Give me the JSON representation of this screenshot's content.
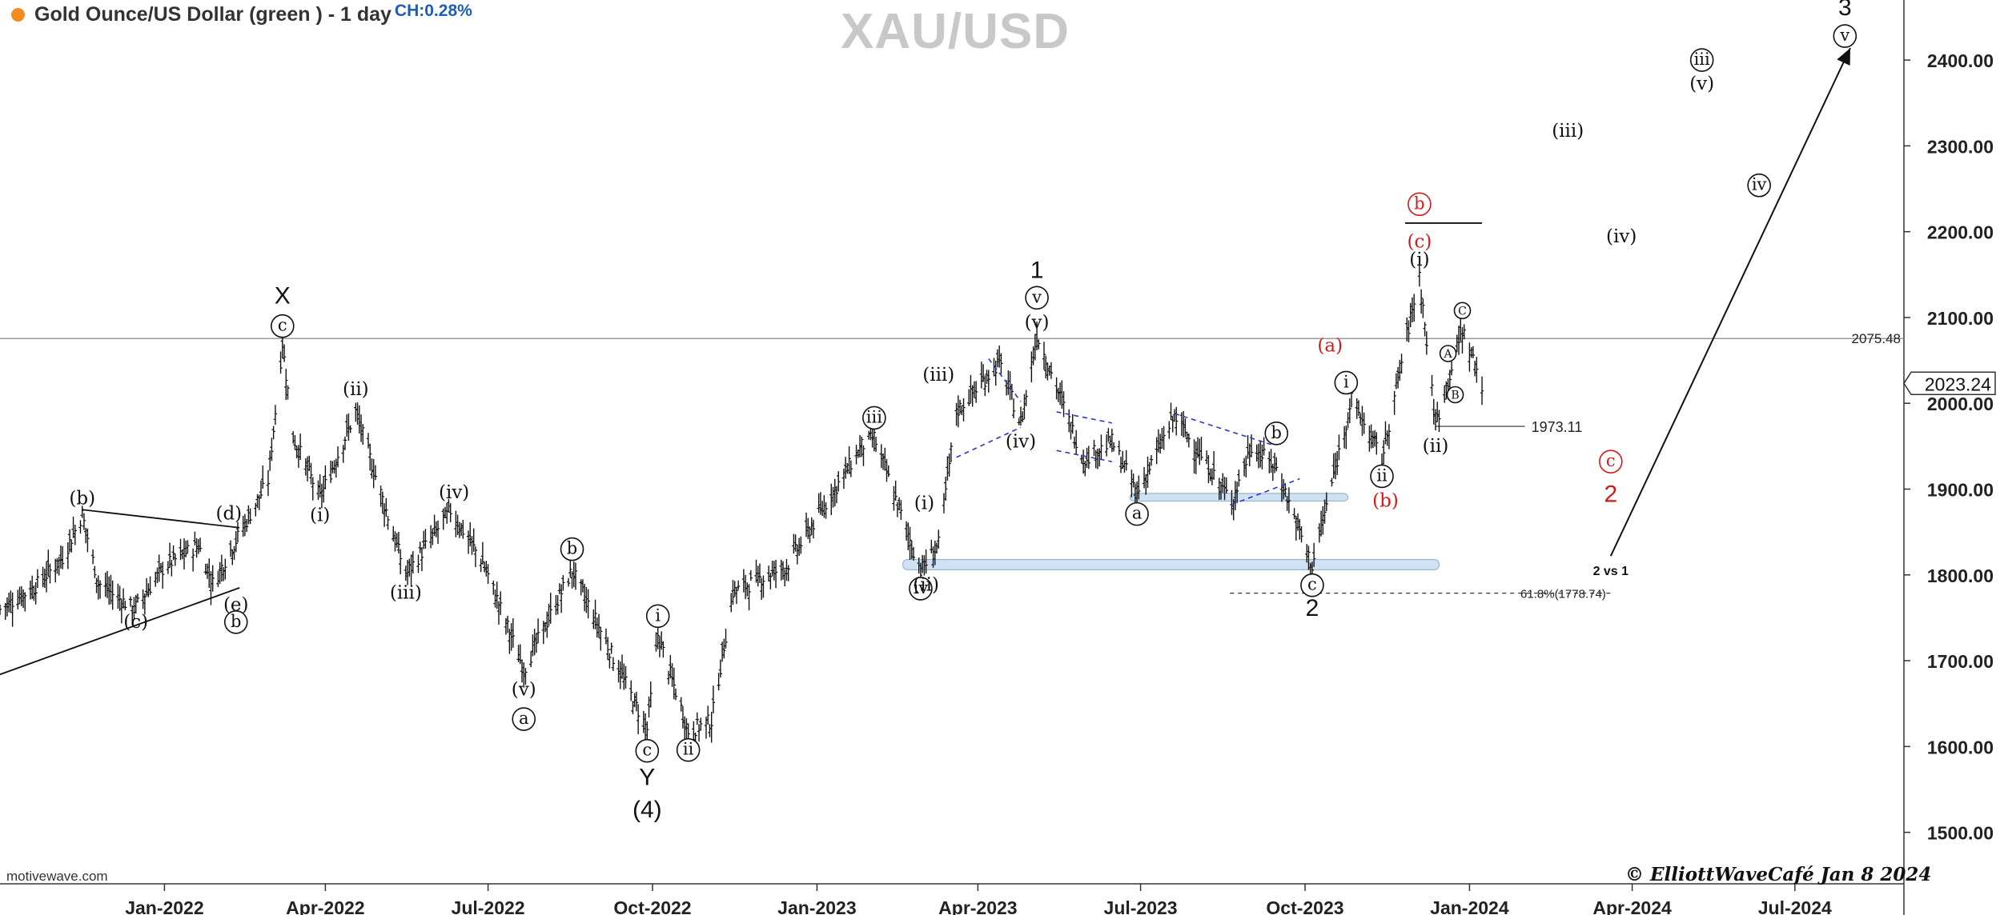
{
  "header": {
    "series_name": "Gold Ounce/US Dollar (green ) - 1 day",
    "change": "CH:0.28%",
    "symbol_watermark": "XAU/USD"
  },
  "footer": {
    "platform": "motivewave.com",
    "signature": "© ElliottWaveCafé Jan 8 2024"
  },
  "colors": {
    "up_marker": "#f28c1e",
    "change_text": "#1a5fb4",
    "bars": "#111111",
    "red_labels": "#d21a1a",
    "zones": "#cfe2f3",
    "triangle_dash": "#2a36c9"
  },
  "chart_data": {
    "type": "ohlc",
    "title": "XAU/USD",
    "ylabel": "",
    "ylim": [
      1440,
      2470
    ],
    "xlim": [
      "2021-10-01",
      "2024-08-31"
    ],
    "yticks": [
      1500,
      1600,
      1700,
      1800,
      1900,
      2000,
      2100,
      2200,
      2300,
      2400
    ],
    "ytick_labels": [
      "1500.00",
      "1600.00",
      "1700.00",
      "1800.00",
      "1900.00",
      "2000.00",
      "2100.00",
      "2200.00",
      "2300.00",
      "2400.00"
    ],
    "xticks": [
      "2022-01-01",
      "2022-04-01",
      "2022-07-01",
      "2022-10-01",
      "2023-01-01",
      "2023-04-01",
      "2023-07-01",
      "2023-10-01",
      "2024-01-01",
      "2024-04-01",
      "2024-07-01"
    ],
    "xtick_labels": [
      "Jan-2022",
      "Apr-2022",
      "Jul-2022",
      "Oct-2022",
      "Jan-2023",
      "Apr-2023",
      "Jul-2023",
      "Oct-2023",
      "Jan-2024",
      "Apr-2024",
      "Jul-2024"
    ],
    "last_price": "2023.24",
    "price_path": [
      [
        "2021-10-01",
        1760
      ],
      [
        "2021-10-20",
        1785
      ],
      [
        "2021-11-05",
        1820
      ],
      [
        "2021-11-16",
        1870
      ],
      [
        "2021-11-25",
        1790
      ],
      [
        "2021-12-15",
        1760
      ],
      [
        "2022-01-01",
        1810
      ],
      [
        "2022-01-20",
        1835
      ],
      [
        "2022-01-28",
        1790
      ],
      [
        "2022-02-10",
        1840
      ],
      [
        "2022-02-28",
        1910
      ],
      [
        "2022-03-08",
        2070
      ],
      [
        "2022-03-14",
        1960
      ],
      [
        "2022-03-29",
        1890
      ],
      [
        "2022-04-18",
        1990
      ],
      [
        "2022-05-16",
        1800
      ],
      [
        "2022-06-10",
        1875
      ],
      [
        "2022-06-28",
        1815
      ],
      [
        "2022-07-21",
        1690
      ],
      [
        "2022-08-17",
        1805
      ],
      [
        "2022-09-28",
        1620
      ],
      [
        "2022-10-04",
        1730
      ],
      [
        "2022-10-21",
        1618
      ],
      [
        "2022-11-03",
        1630
      ],
      [
        "2022-11-15",
        1780
      ],
      [
        "2022-12-15",
        1810
      ],
      [
        "2023-01-26",
        1950
      ],
      [
        "2023-02-02",
        1960
      ],
      [
        "2023-02-28",
        1805
      ],
      [
        "2023-03-10",
        1835
      ],
      [
        "2023-03-20",
        1990
      ],
      [
        "2023-04-13",
        2048
      ],
      [
        "2023-04-25",
        1975
      ],
      [
        "2023-05-04",
        2080
      ],
      [
        "2023-05-30",
        1935
      ],
      [
        "2023-06-15",
        1955
      ],
      [
        "2023-06-29",
        1895
      ],
      [
        "2023-07-20",
        1985
      ],
      [
        "2023-08-21",
        1885
      ],
      [
        "2023-09-01",
        1950
      ],
      [
        "2023-09-15",
        1925
      ],
      [
        "2023-10-05",
        1810
      ],
      [
        "2023-10-27",
        2005
      ],
      [
        "2023-11-13",
        1935
      ],
      [
        "2023-12-04",
        2150
      ],
      [
        "2023-12-13",
        1975
      ],
      [
        "2023-12-28",
        2085
      ],
      [
        "2024-01-08",
        2023
      ]
    ],
    "reference_lines": [
      {
        "label": "2075.48",
        "value": 2075.48,
        "style": "solid-full"
      },
      {
        "label": "1973.11",
        "value": 1973.11,
        "style": "solid-short"
      },
      {
        "label": "61.8%(1778.74)",
        "value": 1778.74,
        "style": "dashed"
      }
    ],
    "annotations_wave_labels": [
      {
        "text": "X",
        "x": "2022-03-08",
        "y": 2126,
        "style": "plain-large"
      },
      {
        "text": "c",
        "x": "2022-03-08",
        "y": 2090,
        "style": "circle"
      },
      {
        "text": "(b)",
        "x": "2021-11-16",
        "y": 1890
      },
      {
        "text": "(c)",
        "x": "2021-12-16",
        "y": 1746
      },
      {
        "text": "(d)",
        "x": "2022-02-06",
        "y": 1872
      },
      {
        "text": "(e)",
        "x": "2022-02-10",
        "y": 1766
      },
      {
        "text": "b",
        "x": "2022-02-10",
        "y": 1745,
        "style": "circle"
      },
      {
        "text": "(ii)",
        "x": "2022-04-18",
        "y": 2017
      },
      {
        "text": "(i)",
        "x": "2022-03-29",
        "y": 1870
      },
      {
        "text": "(iv)",
        "x": "2022-06-12",
        "y": 1897
      },
      {
        "text": "(iii)",
        "x": "2022-05-16",
        "y": 1780
      },
      {
        "text": "(v)",
        "x": "2022-07-21",
        "y": 1667
      },
      {
        "text": "a",
        "x": "2022-07-21",
        "y": 1632,
        "style": "circle"
      },
      {
        "text": "b",
        "x": "2022-08-17",
        "y": 1830,
        "style": "circle"
      },
      {
        "text": "i",
        "x": "2022-10-04",
        "y": 1752,
        "style": "circle"
      },
      {
        "text": "c",
        "x": "2022-09-28",
        "y": 1595,
        "style": "circle"
      },
      {
        "text": "Y",
        "x": "2022-09-28",
        "y": 1565,
        "style": "plain-large"
      },
      {
        "text": "(4)",
        "x": "2022-09-28",
        "y": 1527,
        "style": "plain-large"
      },
      {
        "text": "ii",
        "x": "2022-10-21",
        "y": 1596,
        "style": "circle"
      },
      {
        "text": "iii",
        "x": "2023-02-02",
        "y": 1983,
        "style": "circle"
      },
      {
        "text": "iv",
        "x": "2023-02-28",
        "y": 1784,
        "style": "circle"
      },
      {
        "text": "(ii)",
        "x": "2023-03-03",
        "y": 1789
      },
      {
        "text": "(i)",
        "x": "2023-03-02",
        "y": 1884
      },
      {
        "text": "(iii)",
        "x": "2023-03-10",
        "y": 2034
      },
      {
        "text": "(iv)",
        "x": "2023-04-25",
        "y": 1956
      },
      {
        "text": "1",
        "x": "2023-05-04",
        "y": 2156,
        "style": "plain-large"
      },
      {
        "text": "v",
        "x": "2023-05-04",
        "y": 2123,
        "style": "circle"
      },
      {
        "text": "(v)",
        "x": "2023-05-04",
        "y": 2095
      },
      {
        "text": "a",
        "x": "2023-06-29",
        "y": 1871,
        "style": "circle"
      },
      {
        "text": "b",
        "x": "2023-09-15",
        "y": 1965,
        "style": "circle"
      },
      {
        "text": "c",
        "x": "2023-10-05",
        "y": 1788,
        "style": "circle"
      },
      {
        "text": "2",
        "x": "2023-10-05",
        "y": 1762,
        "style": "plain-large"
      },
      {
        "text": "(a)",
        "x": "2023-10-15",
        "y": 2068,
        "style": "red"
      },
      {
        "text": "i",
        "x": "2023-10-24",
        "y": 2024,
        "style": "circle"
      },
      {
        "text": "ii",
        "x": "2023-11-13",
        "y": 1915,
        "style": "circle"
      },
      {
        "text": "(b)",
        "x": "2023-11-15",
        "y": 1887,
        "style": "red"
      },
      {
        "text": "b",
        "x": "2023-12-04",
        "y": 2232,
        "style": "circle-red"
      },
      {
        "text": "(c)",
        "x": "2023-12-04",
        "y": 2189,
        "style": "red"
      },
      {
        "text": "(i)",
        "x": "2023-12-04",
        "y": 2168
      },
      {
        "text": "(ii)",
        "x": "2023-12-13",
        "y": 1951
      },
      {
        "text": "A",
        "x": "2023-12-20",
        "y": 2058,
        "style": "circle-small"
      },
      {
        "text": "B",
        "x": "2023-12-24",
        "y": 2010,
        "style": "circle-small"
      },
      {
        "text": "C",
        "x": "2023-12-28",
        "y": 2108,
        "style": "circle-small"
      },
      {
        "text": "c",
        "x": "2024-03-20",
        "y": 1932,
        "style": "circle-red"
      },
      {
        "text": "2",
        "x": "2024-03-20",
        "y": 1895,
        "style": "red-large"
      },
      {
        "text": "2 vs 1",
        "x": "2024-03-20",
        "y": 1805,
        "style": "small-bold"
      },
      {
        "text": "(iii)",
        "x": "2024-02-25",
        "y": 2318
      },
      {
        "text": "(iv)",
        "x": "2024-03-26",
        "y": 2195
      },
      {
        "text": "iii",
        "x": "2024-05-10",
        "y": 2400,
        "style": "circle"
      },
      {
        "text": "(v)",
        "x": "2024-05-10",
        "y": 2373
      },
      {
        "text": "iv",
        "x": "2024-06-11",
        "y": 2254,
        "style": "circle"
      },
      {
        "text": "3",
        "x": "2024-07-29",
        "y": 2462,
        "style": "plain-large"
      },
      {
        "text": "v",
        "x": "2024-07-29",
        "y": 2428,
        "style": "circle"
      }
    ],
    "trend_lines": [
      {
        "from": [
          "2021-10-01",
          1684
        ],
        "to": [
          "2022-02-12",
          1785
        ]
      },
      {
        "from": [
          "2021-11-16",
          1876
        ],
        "to": [
          "2022-02-12",
          1855
        ]
      },
      {
        "from": [
          "2023-11-26",
          2210
        ],
        "to": [
          "2024-01-08",
          2210
        ]
      }
    ],
    "projection_arrow": {
      "from": [
        "2024-03-20",
        1822
      ],
      "to": [
        "2024-08-01",
        2414
      ]
    },
    "support_zones": [
      {
        "from": "2023-02-18",
        "to": "2023-12-15",
        "low": 1806,
        "high": 1818
      },
      {
        "from": "2023-06-25",
        "to": "2023-10-25",
        "low": 1886,
        "high": 1895
      }
    ],
    "dashed_channels": [
      [
        [
          "2023-04-07",
          2052
        ],
        [
          "2023-04-25",
          2002
        ]
      ],
      [
        [
          "2023-03-20",
          1937
        ],
        [
          "2023-04-25",
          1972
        ]
      ],
      [
        [
          "2023-05-15",
          1990
        ],
        [
          "2023-06-15",
          1977
        ]
      ],
      [
        [
          "2023-05-15",
          1945
        ],
        [
          "2023-06-15",
          1932
        ]
      ],
      [
        [
          "2023-07-20",
          1988
        ],
        [
          "2023-09-12",
          1952
        ]
      ],
      [
        [
          "2023-08-21",
          1882
        ],
        [
          "2023-09-28",
          1912
        ]
      ]
    ]
  }
}
